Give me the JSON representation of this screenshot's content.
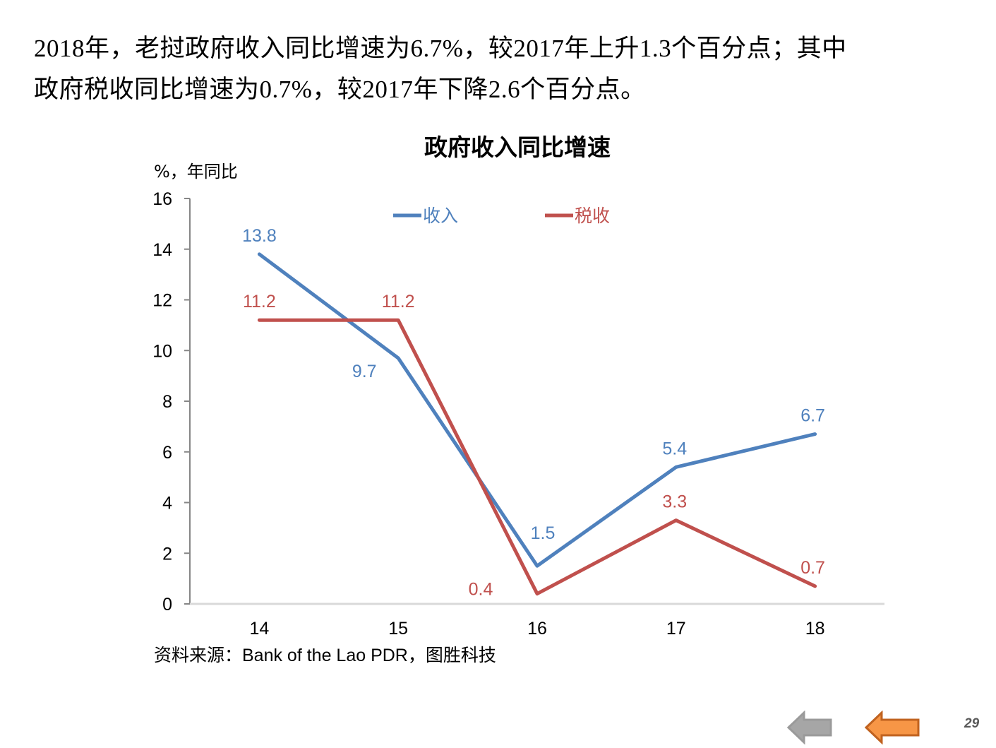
{
  "headline": {
    "line1": "2018年，老挝政府收入同比增速为6.7%，较2017年上升1.3个百分点；其中",
    "line2": "政府税收同比增速为0.7%，较2017年下降2.6个百分点。"
  },
  "chart_data": {
    "type": "line",
    "title": "政府收入同比增速",
    "ylabel": "%，年同比",
    "xlabel": "",
    "categories": [
      "14",
      "15",
      "16",
      "17",
      "18"
    ],
    "ylim": [
      0,
      16
    ],
    "yticks": [
      "0",
      "2",
      "4",
      "6",
      "8",
      "10",
      "12",
      "14",
      "16"
    ],
    "grid": false,
    "legend_position": "top",
    "series": [
      {
        "name": "收入",
        "color": "#4F81BD",
        "values": [
          13.8,
          9.7,
          1.5,
          5.4,
          6.7
        ],
        "labels": [
          "13.8",
          "9.7",
          "1.5",
          "5.4",
          "6.7"
        ]
      },
      {
        "name": "税收",
        "color": "#C0504D",
        "values": [
          11.2,
          11.2,
          0.4,
          3.3,
          0.7
        ],
        "labels": [
          "11.2",
          "11.2",
          "0.4",
          "3.3",
          "0.7"
        ]
      }
    ],
    "source": "资料来源：Bank of the Lao PDR，图胜科技"
  },
  "nav": {
    "back_icon": "gray-left-arrow-icon",
    "prev_icon": "orange-left-arrow-icon",
    "back_color": "#A6A6A6",
    "prev_color": "#F79646"
  },
  "page_number": "29"
}
